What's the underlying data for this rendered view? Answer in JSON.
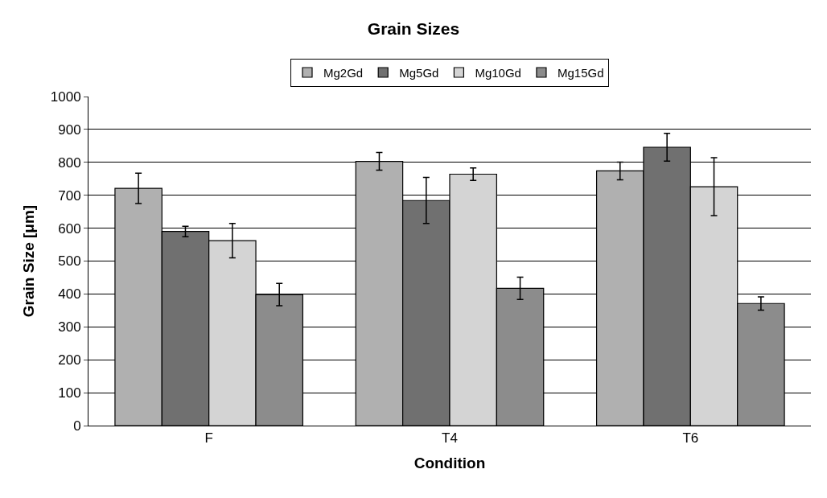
{
  "chart_data": {
    "type": "bar",
    "title": "Grain Sizes",
    "xlabel": "Condition",
    "ylabel": "Grain Size [μm]",
    "categories": [
      "F",
      "T4",
      "T6"
    ],
    "series": [
      {
        "name": "Mg2Gd",
        "color": "#b0b0b0",
        "values": [
          721,
          803,
          774
        ],
        "errors": [
          46,
          27,
          27
        ]
      },
      {
        "name": "Mg5Gd",
        "color": "#707070",
        "values": [
          590,
          684,
          846
        ],
        "errors": [
          16,
          70,
          42
        ]
      },
      {
        "name": "Mg10Gd",
        "color": "#d4d4d4",
        "values": [
          562,
          764,
          726
        ],
        "errors": [
          52,
          19,
          88
        ]
      },
      {
        "name": "Mg15Gd",
        "color": "#8c8c8c",
        "values": [
          398,
          417,
          371
        ],
        "errors": [
          34,
          34,
          20
        ]
      }
    ],
    "ylim": [
      0,
      1000
    ],
    "yticks": [
      0,
      100,
      200,
      300,
      400,
      500,
      600,
      700,
      800,
      900,
      1000
    ],
    "grid": "y",
    "legend": "top"
  }
}
